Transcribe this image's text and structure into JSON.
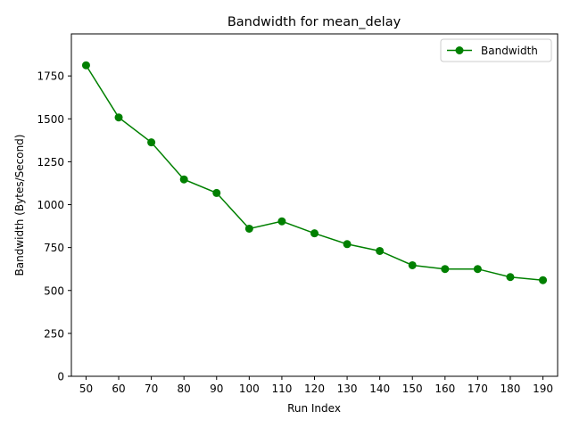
{
  "chart_data": {
    "type": "line",
    "title": "Bandwidth for mean_delay",
    "xlabel": "Run Index",
    "ylabel": "Bandwidth (Bytes/Second)",
    "x": [
      50,
      60,
      70,
      80,
      90,
      100,
      110,
      120,
      130,
      140,
      150,
      160,
      170,
      180,
      190
    ],
    "series": [
      {
        "name": "Bandwidth",
        "color": "#008000",
        "marker": "circle",
        "values": [
          1812,
          1508,
          1363,
          1147,
          1068,
          860,
          903,
          833,
          770,
          730,
          647,
          625,
          625,
          578,
          560
        ]
      }
    ],
    "xlim": [
      45.5,
      194.5
    ],
    "ylim": [
      0,
      1995
    ],
    "yticks": [
      0,
      250,
      500,
      750,
      1000,
      1250,
      1500,
      1750
    ],
    "xticks": [
      50,
      60,
      70,
      80,
      90,
      100,
      110,
      120,
      130,
      140,
      150,
      160,
      170,
      180,
      190
    ],
    "grid": false,
    "legend_position": "top-right"
  }
}
